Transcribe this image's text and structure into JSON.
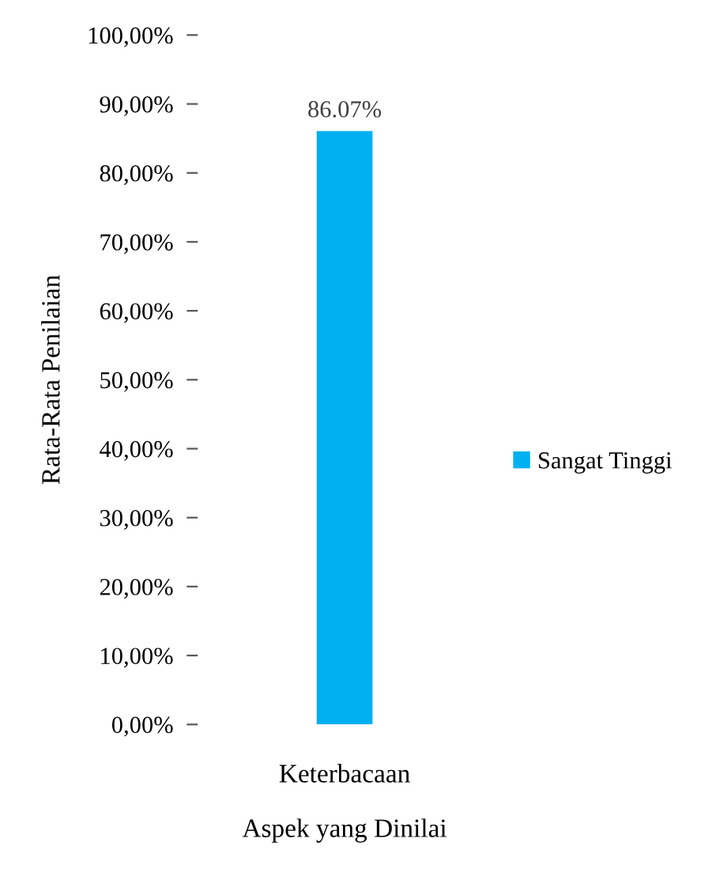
{
  "chart_data": {
    "type": "bar",
    "categories": [
      "Keterbacaan"
    ],
    "series": [
      {
        "name": "Sangat Tinggi",
        "color": "#00b0f0",
        "values": [
          86.07
        ],
        "value_labels": [
          "86.07%"
        ]
      }
    ],
    "xlabel": "Aspek yang Dinilai",
    "ylabel": "Rata-Rata Penilaian",
    "ylim": [
      0,
      100
    ],
    "yticks": [
      {
        "value": 0,
        "label": "0,00%"
      },
      {
        "value": 10,
        "label": "10,00%"
      },
      {
        "value": 20,
        "label": "20,00%"
      },
      {
        "value": 30,
        "label": "30,00%"
      },
      {
        "value": 40,
        "label": "40,00%"
      },
      {
        "value": 50,
        "label": "50,00%"
      },
      {
        "value": 60,
        "label": "60,00%"
      },
      {
        "value": 70,
        "label": "70,00%"
      },
      {
        "value": 80,
        "label": "80,00%"
      },
      {
        "value": 90,
        "label": "90,00%"
      },
      {
        "value": 100,
        "label": "100,00%"
      }
    ],
    "grid": false,
    "legend": "right"
  }
}
